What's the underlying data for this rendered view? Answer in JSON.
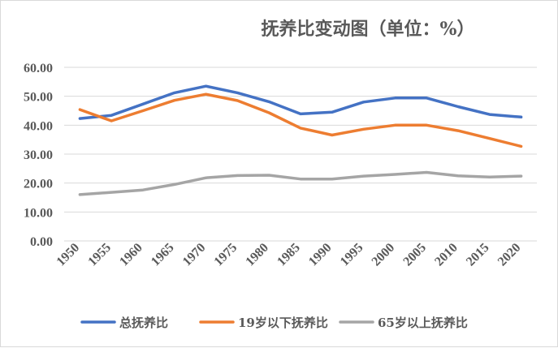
{
  "chart_data": {
    "type": "line",
    "title": "抚养比变动图（单位：%）",
    "xlabel": "",
    "ylabel": "",
    "categories": [
      "1950",
      "1955",
      "1960",
      "1965",
      "1970",
      "1975",
      "1980",
      "1985",
      "1990",
      "1995",
      "2000",
      "2005",
      "2010",
      "2015",
      "2020"
    ],
    "ylim": [
      0,
      60
    ],
    "yticks": [
      "0.00",
      "10.00",
      "20.00",
      "30.00",
      "40.00",
      "50.00",
      "60.00"
    ],
    "grid": true,
    "legend_position": "bottom",
    "series": [
      {
        "name": "总抚养比",
        "color": "#4472C4",
        "values": [
          42.3,
          43.4,
          47.3,
          51.2,
          53.5,
          51.2,
          48.1,
          43.9,
          44.5,
          48.0,
          49.4,
          49.4,
          46.4,
          43.7,
          42.8
        ]
      },
      {
        "name": "19岁以下抚养比",
        "color": "#ED7D31",
        "values": [
          45.4,
          41.5,
          45.0,
          48.6,
          50.7,
          48.5,
          44.3,
          39.0,
          36.6,
          38.6,
          40.0,
          40.0,
          38.1,
          35.4,
          32.7
        ]
      },
      {
        "name": "65岁以上抚养比",
        "color": "#A5A5A5",
        "values": [
          16.0,
          16.8,
          17.6,
          19.5,
          21.8,
          22.6,
          22.7,
          21.4,
          21.4,
          22.4,
          23.0,
          23.7,
          22.5,
          22.1,
          22.4
        ]
      }
    ]
  }
}
